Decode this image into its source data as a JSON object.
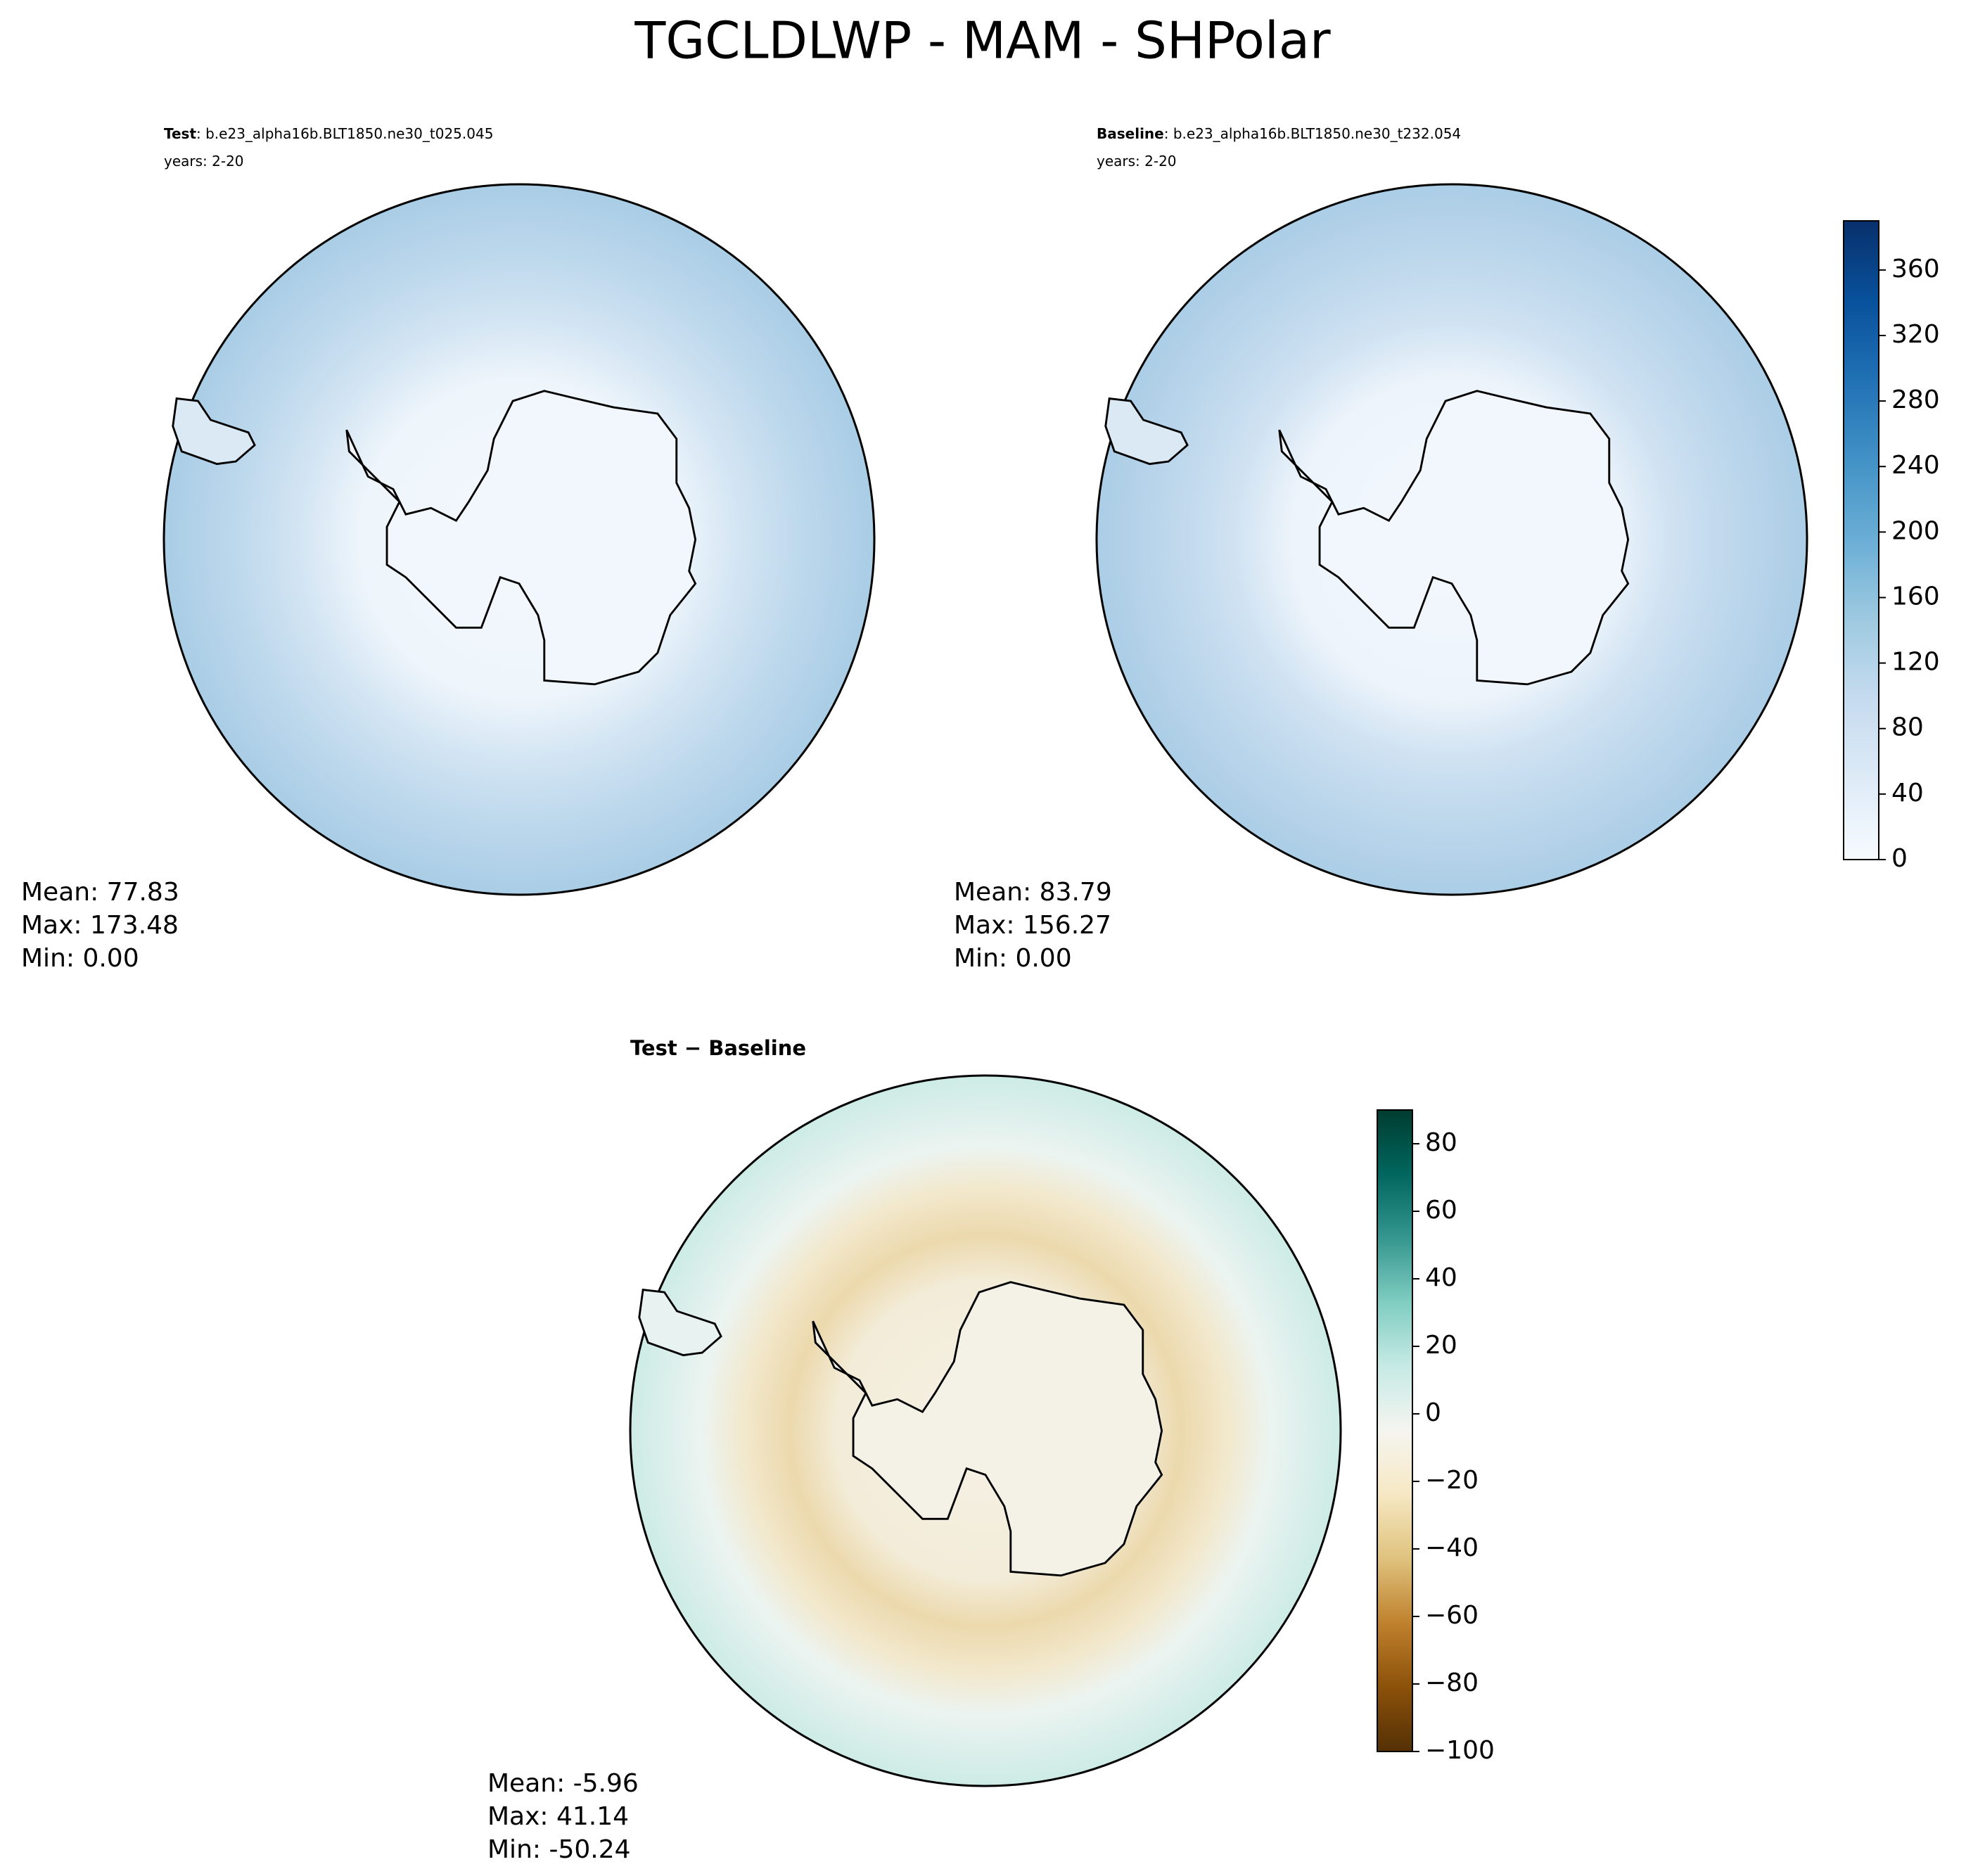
{
  "chart_data": {
    "type": "map",
    "title": "TGCLDLWP - MAM - SHPolar",
    "panels": [
      {
        "heading": "Test",
        "case": ": b.e23_alpha16b.BLT1850.ne30_t025.045",
        "years": "years: 2-20",
        "stats": [
          "Mean: 77.83",
          "Max: 173.48",
          "Min:  0.00"
        ]
      },
      {
        "heading": "Baseline",
        "case": ": b.e23_alpha16b.BLT1850.ne30_t232.054",
        "years": "years: 2-20",
        "stats": [
          "Mean: 83.79",
          "Max: 156.27",
          "Min:  0.00"
        ]
      },
      {
        "heading": "Test − Baseline",
        "stats": [
          "Mean: -5.96",
          "Max: 41.14",
          "Min: -50.24"
        ]
      }
    ],
    "colorbars": [
      {
        "ylim": [
          0,
          390
        ],
        "yticks": [
          0,
          40,
          80,
          120,
          160,
          200,
          240,
          280,
          320,
          360
        ],
        "colors": [
          "#f7fbff",
          "#deebf7",
          "#c6dbef",
          "#9ecae1",
          "#6baed6",
          "#4292c6",
          "#2171b5",
          "#08519c",
          "#08306b"
        ]
      },
      {
        "ylim": [
          -100,
          90
        ],
        "yticks": [
          {
            "value": -100,
            "label": "−100"
          },
          {
            "value": -80,
            "label": "−80"
          },
          {
            "value": -60,
            "label": "−60"
          },
          {
            "value": -40,
            "label": "−40"
          },
          {
            "value": -20,
            "label": "−20"
          },
          0,
          20,
          40,
          60,
          80
        ],
        "colors": [
          "#543005",
          "#8c510a",
          "#bf812d",
          "#dfc27d",
          "#f6e8c3",
          "#f5f5f0",
          "#c7eae5",
          "#80cdc1",
          "#35978f",
          "#01665e",
          "#003c30"
        ]
      }
    ]
  }
}
